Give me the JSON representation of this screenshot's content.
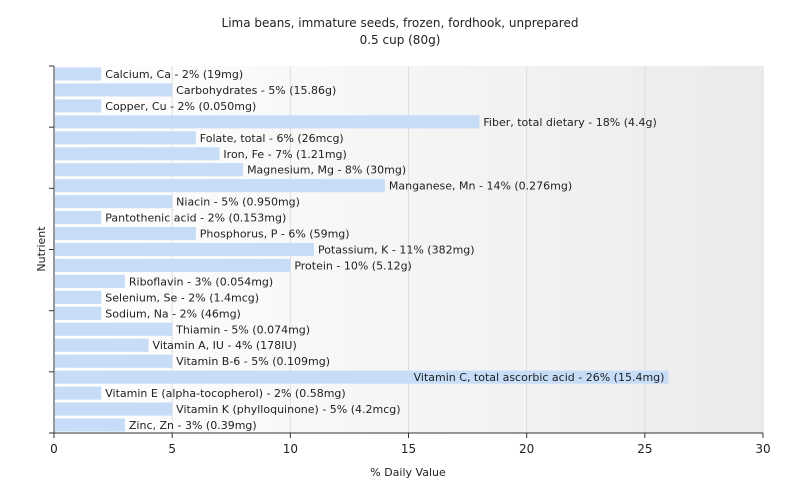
{
  "chart_data": {
    "type": "bar",
    "orientation": "horizontal",
    "title": "Lima beans, immature seeds, frozen, fordhook, unprepared",
    "subtitle": "0.5 cup (80g)",
    "xlabel": "% Daily Value",
    "ylabel": "Nutrient",
    "xlim": [
      0,
      30
    ],
    "xticks": [
      0,
      5,
      10,
      15,
      20,
      25,
      30
    ],
    "grid": "vertical",
    "bar_color": "#c6dcf7",
    "categories": [
      "Calcium, Ca",
      "Carbohydrates",
      "Copper, Cu",
      "Fiber, total dietary",
      "Folate, total",
      "Iron, Fe",
      "Magnesium, Mg",
      "Manganese, Mn",
      "Niacin",
      "Pantothenic acid",
      "Phosphorus, P",
      "Potassium, K",
      "Protein",
      "Riboflavin",
      "Selenium, Se",
      "Sodium, Na",
      "Thiamin",
      "Vitamin A, IU",
      "Vitamin B-6",
      "Vitamin C, total ascorbic acid",
      "Vitamin E (alpha-tocopherol)",
      "Vitamin K (phylloquinone)",
      "Zinc, Zn"
    ],
    "values": [
      2,
      5,
      2,
      18,
      6,
      7,
      8,
      14,
      5,
      2,
      6,
      11,
      10,
      3,
      2,
      2,
      5,
      4,
      5,
      26,
      2,
      5,
      3
    ],
    "labels": [
      "Calcium, Ca - 2% (19mg)",
      "Carbohydrates - 5% (15.86g)",
      "Copper, Cu - 2% (0.050mg)",
      "Fiber, total dietary - 18% (4.4g)",
      "Folate, total - 6% (26mcg)",
      "Iron, Fe - 7% (1.21mg)",
      "Magnesium, Mg - 8% (30mg)",
      "Manganese, Mn - 14% (0.276mg)",
      "Niacin - 5% (0.950mg)",
      "Pantothenic acid - 2% (0.153mg)",
      "Phosphorus, P - 6% (59mg)",
      "Potassium, K - 11% (382mg)",
      "Protein - 10% (5.12g)",
      "Riboflavin - 3% (0.054mg)",
      "Selenium, Se - 2% (1.4mcg)",
      "Sodium, Na - 2% (46mg)",
      "Thiamin - 5% (0.074mg)",
      "Vitamin A, IU - 4% (178IU)",
      "Vitamin B-6 - 5% (0.109mg)",
      "Vitamin C, total ascorbic acid - 26% (15.4mg)",
      "Vitamin E (alpha-tocopherol) - 2% (0.58mg)",
      "Vitamin K (phylloquinone) - 5% (4.2mcg)",
      "Zinc, Zn - 3% (0.39mg)"
    ]
  }
}
